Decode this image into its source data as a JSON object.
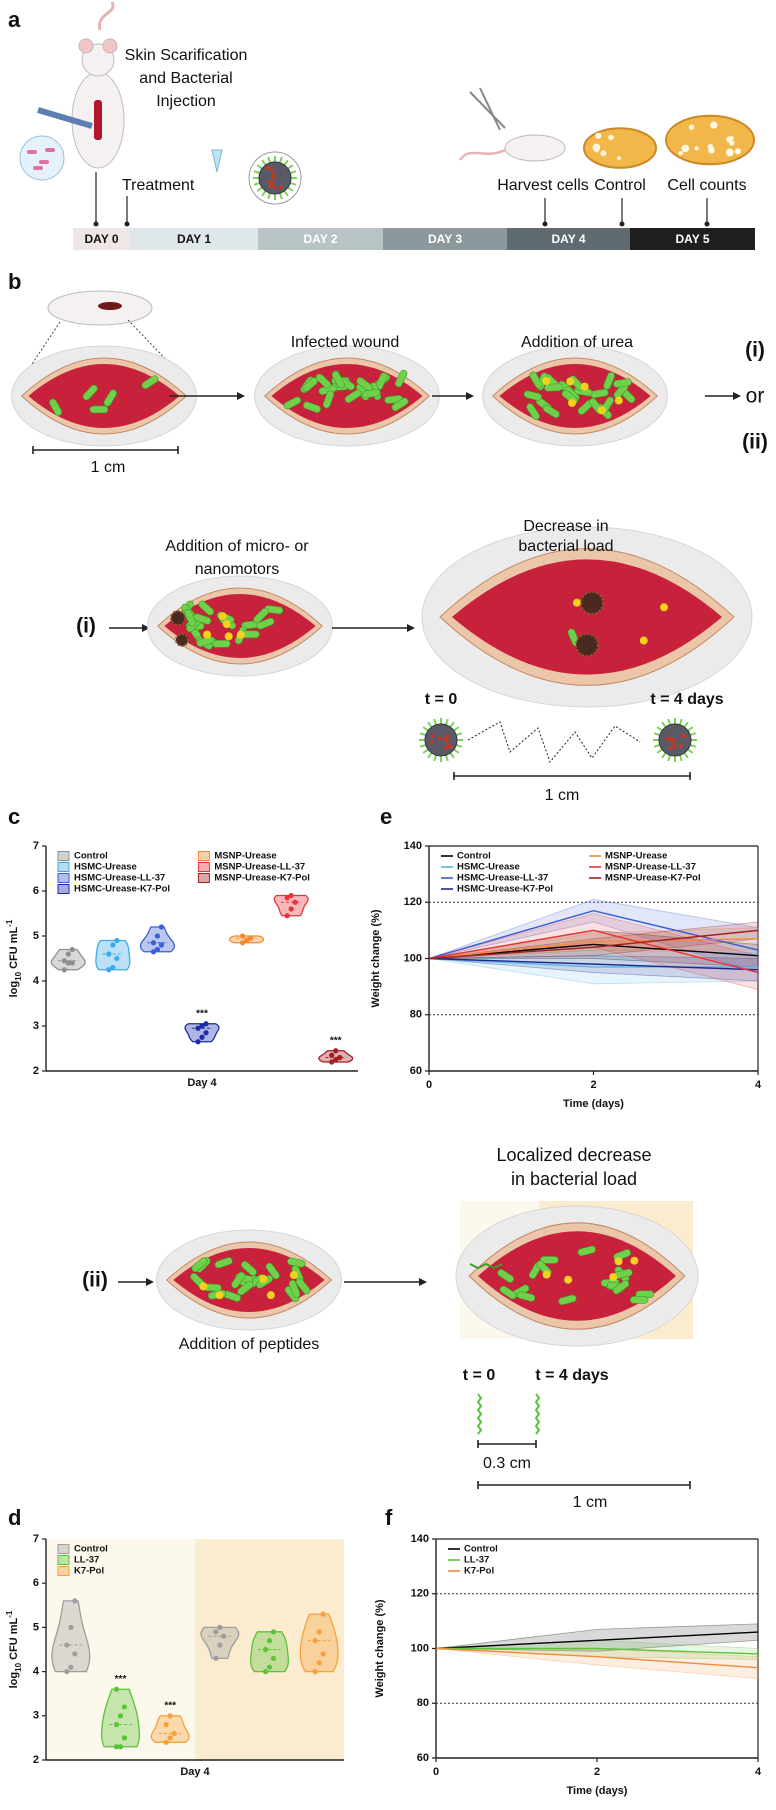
{
  "panels": {
    "a": {
      "label": "a",
      "injection": [
        "Skin Scarification",
        "and Bacterial",
        "Injection"
      ],
      "treatment": "Treatment",
      "harvest": "Harvest cells",
      "control": "Control",
      "cell_counts": "Cell counts",
      "days": [
        "DAY 0",
        "DAY 1",
        "DAY 2",
        "DAY 3",
        "DAY 4",
        "DAY 5"
      ]
    },
    "b": {
      "label": "b",
      "scale": "1 cm",
      "infected": "Infected wound",
      "urea": "Addition of urea",
      "option_i": "(i)",
      "or": "or",
      "option_ii": "(ii)",
      "motors": {
        "label": "(i)",
        "addition": [
          "Addition of micro- or",
          "nanomotors"
        ],
        "result": [
          "Decrease in",
          "bacterial load"
        ],
        "t0": "t = 0",
        "t4": "t = 4 days",
        "scale": "1 cm"
      },
      "peptides": {
        "label": "(ii)",
        "addition": "Addition of peptides",
        "result": [
          "Localized decrease",
          "in bacterial load"
        ],
        "t0": "t = 0",
        "t4": "t = 4 days",
        "scale_small": "0.3 cm",
        "scale": "1 cm"
      }
    }
  },
  "chart_data": [
    {
      "panel_label": "c",
      "type": "violin",
      "y_label": [
        "log",
        "10",
        " CFU mL",
        "-1"
      ],
      "x_label": "Day 4",
      "ylim": [
        2,
        7
      ],
      "yticks": [
        2,
        3,
        4,
        5,
        6,
        7
      ],
      "legend_columns": 2,
      "series": [
        {
          "name": "Control",
          "color": "#8f8f8f",
          "values": [
            [
              4.25,
              4.4,
              4.4,
              4.45,
              4.6,
              4.7
            ]
          ]
        },
        {
          "name": "HSMC-Urease",
          "color": "#3fa9e6",
          "values": [
            [
              4.25,
              4.3,
              4.5,
              4.6,
              4.8,
              4.9
            ]
          ]
        },
        {
          "name": "HSMC-Urease-LL-37",
          "color": "#3a5fd6",
          "values": [
            [
              4.65,
              4.7,
              4.8,
              4.85,
              5.0,
              5.2
            ]
          ]
        },
        {
          "name": "HSMC-Urease-K7-Pol",
          "color": "#1c2fa8",
          "values": [
            [
              2.65,
              2.75,
              2.85,
              2.95,
              3.0,
              3.05
            ]
          ],
          "annotations": [
            "***"
          ]
        },
        {
          "name": "MSNP-Urease",
          "color": "#f28a2e",
          "values": [
            [
              4.85,
              4.9,
              4.95,
              5.0
            ]
          ]
        },
        {
          "name": "MSNP-Urease-LL-37",
          "color": "#e8333a",
          "values": [
            [
              5.45,
              5.6,
              5.75,
              5.85,
              5.9
            ]
          ]
        },
        {
          "name": "MSNP-Urease-K7-Pol",
          "color": "#a41e22",
          "values": [
            [
              2.2,
              2.25,
              2.3,
              2.35,
              2.45
            ]
          ],
          "annotations": [
            "***"
          ]
        }
      ]
    },
    {
      "panel_label": "e",
      "type": "line",
      "y_label": "Weight change (%)",
      "x_label": "Time (days)",
      "x": [
        0,
        2,
        4
      ],
      "xlim": [
        0,
        4
      ],
      "xticks": [
        0,
        2,
        4
      ],
      "ylim": [
        60,
        140
      ],
      "yticks": [
        60,
        80,
        100,
        120,
        140
      ],
      "reference_lines": [
        80,
        120
      ],
      "legend_columns": 2,
      "series": [
        {
          "name": "Control",
          "color": "#000000",
          "values": [
            100,
            105,
            101
          ],
          "error": [
            0,
            5,
            4
          ]
        },
        {
          "name": "HSMC-Urease",
          "color": "#5ab4e6",
          "values": [
            100,
            97,
            97
          ],
          "error": [
            0,
            6,
            5
          ]
        },
        {
          "name": "HSMC-Urease-LL-37",
          "color": "#3c5bd3",
          "values": [
            100,
            117,
            103
          ],
          "error": [
            0,
            4,
            8
          ]
        },
        {
          "name": "HSMC-Urease-K7-Pol",
          "color": "#1f2a8c",
          "values": [
            100,
            98,
            96
          ],
          "error": [
            0,
            3,
            4
          ]
        },
        {
          "name": "MSNP-Urease",
          "color": "#f28a3a",
          "values": [
            100,
            106,
            107
          ],
          "error": [
            0,
            3,
            4
          ]
        },
        {
          "name": "MSNP-Urease-LL-37",
          "color": "#e8333a",
          "values": [
            100,
            110,
            95
          ],
          "error": [
            0,
            6,
            6
          ]
        },
        {
          "name": "MSNP-Urease-K7-Pol",
          "color": "#9e1f24",
          "values": [
            100,
            104,
            110
          ],
          "error": [
            0,
            3,
            3
          ]
        }
      ]
    },
    {
      "panel_label": "d",
      "type": "violin",
      "y_label": [
        "log",
        "10",
        " CFU mL",
        "-1"
      ],
      "x_label": "Day 4",
      "ylim": [
        2,
        7
      ],
      "yticks": [
        2,
        3,
        4,
        5,
        6,
        7
      ],
      "legend_columns": 1,
      "band_colors": [
        "#fdf8ec",
        "#fbecd0"
      ],
      "series": [
        {
          "name": "Control",
          "color": "#9e9e9e",
          "values": [
            [
              4.0,
              4.1,
              4.4,
              4.6,
              5.0,
              5.6
            ],
            [
              4.3,
              4.6,
              4.8,
              4.9,
              5.0
            ]
          ]
        },
        {
          "name": "LL-37",
          "color": "#5cc23a",
          "values": [
            [
              2.3,
              2.3,
              2.5,
              2.8,
              3.0,
              3.2,
              3.6
            ],
            [
              4.0,
              4.1,
              4.3,
              4.5,
              4.7,
              4.9
            ]
          ],
          "annotations": [
            "***"
          ]
        },
        {
          "name": "K7-Pol",
          "color": "#f5a13a",
          "values": [
            [
              2.4,
              2.5,
              2.6,
              2.8,
              3.0
            ],
            [
              4.0,
              4.2,
              4.4,
              4.7,
              4.9,
              5.3
            ]
          ],
          "annotations": [
            "***"
          ]
        }
      ]
    },
    {
      "panel_label": "f",
      "type": "line",
      "y_label": "Weight change (%)",
      "x_label": "Time (days)",
      "x": [
        0,
        2,
        4
      ],
      "xlim": [
        0,
        4
      ],
      "xticks": [
        0,
        2,
        4
      ],
      "ylim": [
        60,
        140
      ],
      "yticks": [
        60,
        80,
        100,
        120,
        140
      ],
      "reference_lines": [
        80,
        120
      ],
      "legend_columns": 1,
      "series": [
        {
          "name": "Control",
          "color": "#000000",
          "values": [
            100,
            103,
            106
          ],
          "error": [
            0,
            4,
            3
          ]
        },
        {
          "name": "LL-37",
          "color": "#5cc23a",
          "values": [
            100,
            100,
            98
          ],
          "error": [
            0,
            3,
            2
          ]
        },
        {
          "name": "K7-Pol",
          "color": "#f28a3a",
          "values": [
            100,
            97,
            93
          ],
          "error": [
            0,
            3,
            4
          ]
        }
      ]
    }
  ]
}
